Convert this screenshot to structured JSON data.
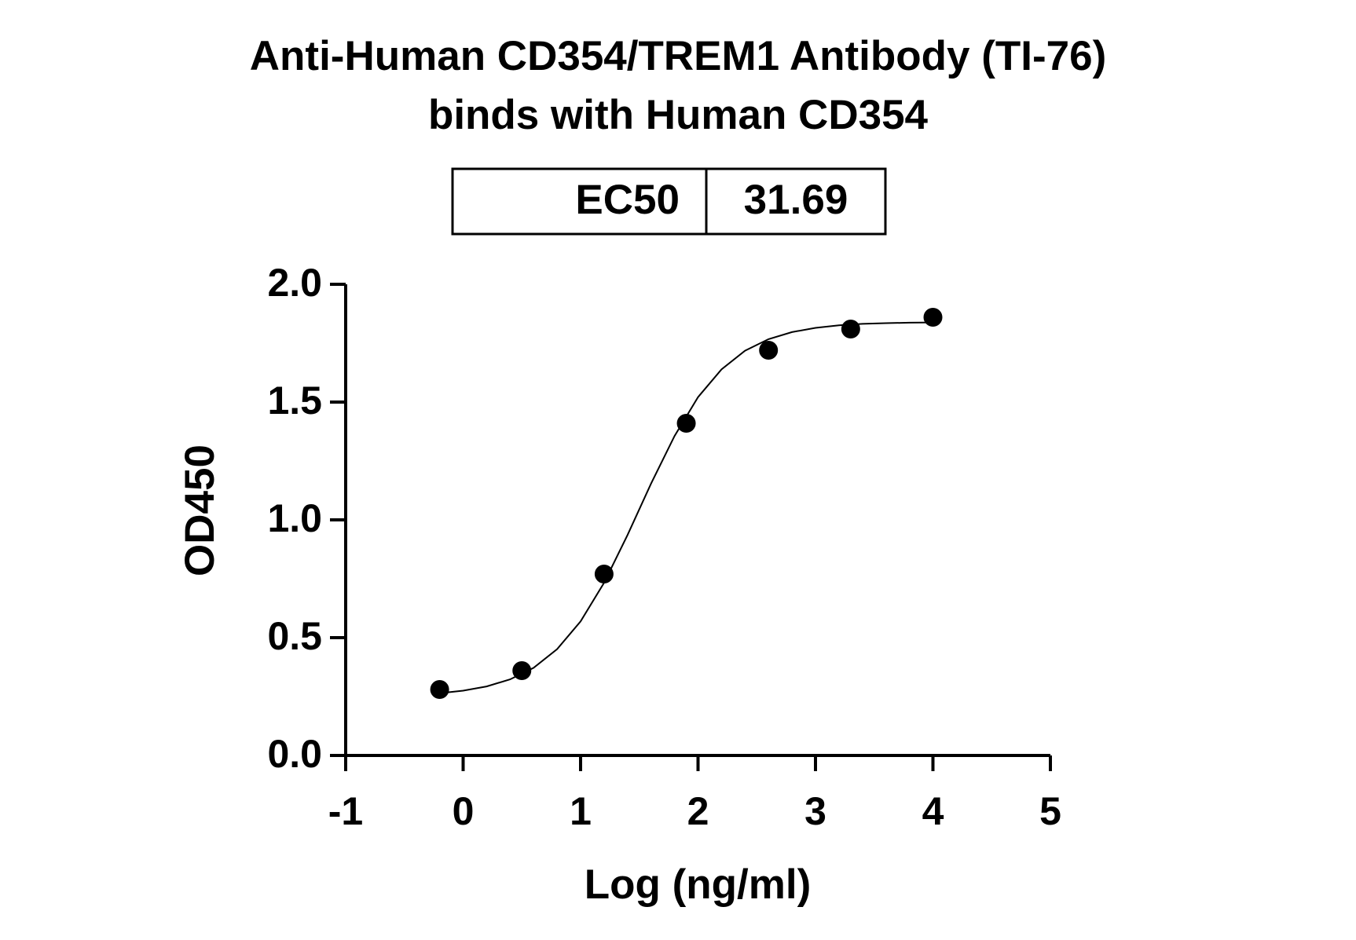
{
  "chart_data": {
    "type": "scatter",
    "title": "Anti-Human CD354/TREM1 Antibody (TI-76)",
    "subtitle": "binds with Human CD354",
    "ec50_label": "EC50",
    "ec50_value": 31.69,
    "x_label": "Log (ng/ml)",
    "y_label": "OD450",
    "x": [
      -0.2,
      0.5,
      1.2,
      1.9,
      2.6,
      3.3,
      4.0
    ],
    "values": [
      0.28,
      0.36,
      0.77,
      1.41,
      1.72,
      1.81,
      1.86
    ],
    "color": "#000000",
    "fit": {
      "x": [
        -0.2,
        0.0,
        0.2,
        0.4,
        0.6,
        0.8,
        1.0,
        1.2,
        1.4,
        1.6,
        1.8,
        2.0,
        2.2,
        2.4,
        2.6,
        2.8,
        3.0,
        3.2,
        3.4,
        3.6,
        3.8,
        4.0
      ],
      "values": [
        0.264,
        0.275,
        0.293,
        0.323,
        0.372,
        0.451,
        0.569,
        0.733,
        0.936,
        1.154,
        1.356,
        1.521,
        1.639,
        1.718,
        1.767,
        1.797,
        1.815,
        1.826,
        1.832,
        1.835,
        1.837,
        1.838
      ]
    },
    "xlim": [
      -1,
      5
    ],
    "xticks": [
      -1,
      0,
      1,
      2,
      3,
      4,
      5
    ],
    "ylim": [
      0,
      2
    ],
    "yticks": [
      {
        "value": 0,
        "label": "0.0"
      },
      {
        "value": 0.5,
        "label": "0.5"
      },
      {
        "value": 1,
        "label": "1.0"
      },
      {
        "value": 1.5,
        "label": "1.5"
      },
      {
        "value": 2,
        "label": "2.0"
      }
    ]
  }
}
